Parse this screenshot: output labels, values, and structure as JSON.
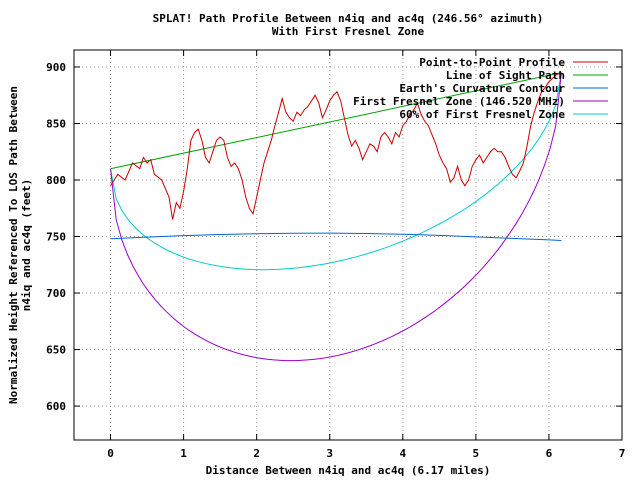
{
  "chart_data": {
    "type": "line",
    "title": "SPLAT! Path Profile Between n4iq and ac4q (246.56° azimuth)",
    "subtitle": "With First Fresnel Zone",
    "xlabel": "Distance Between n4iq and ac4q (6.17 miles)",
    "ylabel_line1": "Normalized Height Referenced To LOS Path Between",
    "ylabel_line2": "n4iq and ac4q (feet)",
    "xlim": [
      -0.5,
      7
    ],
    "ylim": [
      570,
      915
    ],
    "xticks": [
      0,
      1,
      2,
      3,
      4,
      5,
      6,
      7
    ],
    "yticks": [
      600,
      650,
      700,
      750,
      800,
      850,
      900
    ],
    "grid": true,
    "legend_position": "top-right",
    "series": [
      {
        "name": "Point-to-Point Profile",
        "color": "#cc0000",
        "points": [
          [
            0,
            795
          ],
          [
            0.05,
            800
          ],
          [
            0.1,
            805
          ],
          [
            0.2,
            800
          ],
          [
            0.3,
            815
          ],
          [
            0.4,
            810
          ],
          [
            0.45,
            820
          ],
          [
            0.5,
            815
          ],
          [
            0.55,
            818
          ],
          [
            0.6,
            805
          ],
          [
            0.7,
            800
          ],
          [
            0.8,
            785
          ],
          [
            0.85,
            765
          ],
          [
            0.9,
            780
          ],
          [
            0.95,
            775
          ],
          [
            1.0,
            790
          ],
          [
            1.05,
            810
          ],
          [
            1.1,
            835
          ],
          [
            1.15,
            842
          ],
          [
            1.2,
            845
          ],
          [
            1.25,
            835
          ],
          [
            1.3,
            820
          ],
          [
            1.35,
            815
          ],
          [
            1.4,
            825
          ],
          [
            1.45,
            835
          ],
          [
            1.5,
            838
          ],
          [
            1.55,
            835
          ],
          [
            1.6,
            820
          ],
          [
            1.65,
            812
          ],
          [
            1.7,
            815
          ],
          [
            1.75,
            810
          ],
          [
            1.8,
            800
          ],
          [
            1.85,
            785
          ],
          [
            1.9,
            775
          ],
          [
            1.95,
            770
          ],
          [
            2.0,
            785
          ],
          [
            2.05,
            800
          ],
          [
            2.1,
            815
          ],
          [
            2.15,
            825
          ],
          [
            2.2,
            835
          ],
          [
            2.25,
            848
          ],
          [
            2.3,
            860
          ],
          [
            2.35,
            872
          ],
          [
            2.4,
            860
          ],
          [
            2.45,
            855
          ],
          [
            2.5,
            852
          ],
          [
            2.55,
            860
          ],
          [
            2.6,
            857
          ],
          [
            2.65,
            862
          ],
          [
            2.7,
            865
          ],
          [
            2.75,
            870
          ],
          [
            2.8,
            875
          ],
          [
            2.85,
            868
          ],
          [
            2.9,
            855
          ],
          [
            2.95,
            862
          ],
          [
            3.0,
            870
          ],
          [
            3.05,
            875
          ],
          [
            3.1,
            878
          ],
          [
            3.15,
            870
          ],
          [
            3.2,
            855
          ],
          [
            3.25,
            840
          ],
          [
            3.3,
            830
          ],
          [
            3.35,
            835
          ],
          [
            3.4,
            828
          ],
          [
            3.45,
            818
          ],
          [
            3.5,
            825
          ],
          [
            3.55,
            832
          ],
          [
            3.6,
            830
          ],
          [
            3.65,
            825
          ],
          [
            3.7,
            838
          ],
          [
            3.75,
            842
          ],
          [
            3.8,
            838
          ],
          [
            3.85,
            832
          ],
          [
            3.9,
            842
          ],
          [
            3.95,
            838
          ],
          [
            4.0,
            848
          ],
          [
            4.05,
            852
          ],
          [
            4.1,
            858
          ],
          [
            4.15,
            862
          ],
          [
            4.2,
            868
          ],
          [
            4.25,
            858
          ],
          [
            4.3,
            852
          ],
          [
            4.35,
            848
          ],
          [
            4.4,
            840
          ],
          [
            4.45,
            832
          ],
          [
            4.5,
            822
          ],
          [
            4.55,
            815
          ],
          [
            4.6,
            810
          ],
          [
            4.65,
            798
          ],
          [
            4.7,
            802
          ],
          [
            4.75,
            812
          ],
          [
            4.8,
            800
          ],
          [
            4.85,
            795
          ],
          [
            4.9,
            800
          ],
          [
            4.95,
            812
          ],
          [
            5.0,
            818
          ],
          [
            5.05,
            822
          ],
          [
            5.1,
            815
          ],
          [
            5.15,
            820
          ],
          [
            5.2,
            825
          ],
          [
            5.25,
            828
          ],
          [
            5.3,
            825
          ],
          [
            5.35,
            825
          ],
          [
            5.4,
            820
          ],
          [
            5.45,
            812
          ],
          [
            5.5,
            805
          ],
          [
            5.55,
            802
          ],
          [
            5.6,
            808
          ],
          [
            5.65,
            815
          ],
          [
            5.7,
            830
          ],
          [
            5.75,
            848
          ],
          [
            5.8,
            860
          ],
          [
            5.85,
            870
          ],
          [
            5.9,
            878
          ],
          [
            5.95,
            882
          ],
          [
            6.0,
            887
          ],
          [
            6.05,
            890
          ],
          [
            6.1,
            893
          ],
          [
            6.17,
            895
          ]
        ]
      },
      {
        "name": "Line of Sight Path",
        "color": "#00a000",
        "points": [
          [
            0,
            810
          ],
          [
            6.17,
            895
          ]
        ]
      },
      {
        "name": "Earth's Curvature Contour",
        "color": "#0066cc",
        "points": [
          [
            0,
            748
          ],
          [
            0.5,
            749.5
          ],
          [
            1,
            750.8
          ],
          [
            1.5,
            751.8
          ],
          [
            2,
            752.5
          ],
          [
            2.5,
            752.9
          ],
          [
            3,
            753
          ],
          [
            3.5,
            752.7
          ],
          [
            4,
            752
          ],
          [
            4.5,
            751
          ],
          [
            5,
            749.7
          ],
          [
            5.5,
            748.3
          ],
          [
            6,
            747
          ],
          [
            6.17,
            746.5
          ]
        ]
      },
      {
        "name": "First Fresnel Zone (146.520 MHz)",
        "color": "#9900cc",
        "los_start": 810,
        "los_end": 895,
        "clearance_max": 208
      },
      {
        "name": "60% of First Fresnel Zone",
        "color": "#00cccc",
        "los_start": 810,
        "los_end": 895,
        "clearance_max": 124.8
      }
    ]
  }
}
